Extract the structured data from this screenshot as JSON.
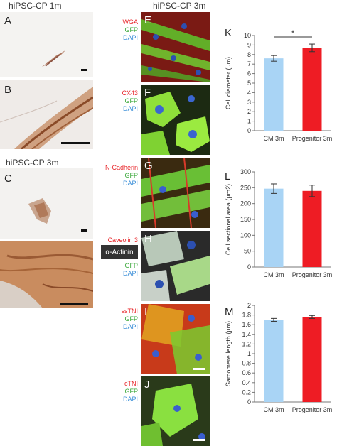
{
  "headers": {
    "left": "hiPSC-CP 1m",
    "left_lower": "hiPSC-CP 3m",
    "middle": "hiPSC-CP 3m"
  },
  "panels": {
    "A": "A",
    "B": "B",
    "C": "C",
    "E": "E",
    "F": "F",
    "G": "G",
    "H": "H",
    "I": "I",
    "J": "J",
    "K": "K",
    "L": "L",
    "M": "M"
  },
  "stains": {
    "E": [
      "WGA",
      "GFP",
      "DAPI"
    ],
    "F": [
      "CX43",
      "GFP",
      "DAPI"
    ],
    "G": [
      "N-Cadherin",
      "GFP",
      "DAPI"
    ],
    "H_top": "Caveolin 3",
    "H_box": "α-Actinin",
    "H_rest": [
      "GFP",
      "DAPI"
    ],
    "I": [
      "ssTNI",
      "GFP",
      "DAPI"
    ],
    "J": [
      "cTNI",
      "GFP",
      "DAPI"
    ]
  },
  "colors": {
    "red_stain": "#e8262a",
    "green_stain": "#3aa83a",
    "blue_stain": "#3b8fd8",
    "bar_cm": "#a9d4f5",
    "bar_progenitor": "#ee1c24"
  },
  "chart_data": [
    {
      "type": "bar",
      "panel": "K",
      "categories": [
        "CM 3m",
        "Progenitor 3m"
      ],
      "values": [
        7.6,
        8.7
      ],
      "errors": [
        0.3,
        0.4
      ],
      "ylabel": "Cell diameter (µm)",
      "ylim": [
        0,
        10
      ],
      "yticks": [
        0,
        1,
        2,
        3,
        4,
        5,
        6,
        7,
        8,
        9,
        10
      ],
      "significance": "*"
    },
    {
      "type": "bar",
      "panel": "L",
      "categories": [
        "CM 3m",
        "Progenitor 3m"
      ],
      "values": [
        247,
        240
      ],
      "errors": [
        15,
        18
      ],
      "ylabel": "Cell sectional area (µm2)",
      "ylim": [
        0,
        300
      ],
      "yticks": [
        0,
        50,
        100,
        150,
        200,
        250,
        300
      ]
    },
    {
      "type": "bar",
      "panel": "M",
      "categories": [
        "CM 3m",
        "Progenitor 3m"
      ],
      "values": [
        1.7,
        1.76
      ],
      "errors": [
        0.03,
        0.03
      ],
      "ylabel": "Sarcomere length (µm)",
      "ylim": [
        0,
        2
      ],
      "yticks": [
        0,
        0.2,
        0.4,
        0.6,
        0.8,
        1,
        1.2,
        1.4,
        1.6,
        1.8,
        2
      ]
    }
  ]
}
